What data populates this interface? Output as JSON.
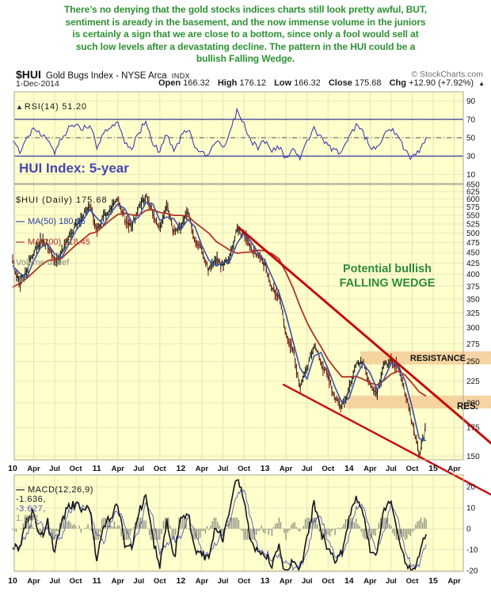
{
  "commentary": {
    "text": "There’s no denying that the gold stocks indices charts still look pretty awful, BUT,\nsentiment is aready in the basement, and the now immense volume in the juniors\nis certainly a sign that we are close to a bottom, since only a fool would sell at\nsuch low levels after a devastating decline. The pattern in the HUI could be a\nbullish Falling Wedge."
  },
  "header": {
    "symbol": "$HUI",
    "name": "Gold Bugs Index - NYSE Arca",
    "exchange": "INDX",
    "credit": "© StockCharts.com",
    "date": "1-Dec-2014",
    "quote": {
      "open_label": "Open",
      "open": "166.32",
      "high_label": "High",
      "high": "176.12",
      "low_label": "Low",
      "low": "166.32",
      "close_label": "Close",
      "close": "175.68",
      "chg_label": "Chg",
      "chg": "+12.90 (+7.92%)",
      "direction_icon": "▲"
    }
  },
  "annotations": {
    "hui_label": "HUI Index: 5-year",
    "wedge_label": "Potential bullish\nFALLING WEDGE",
    "resistance_label": "RESISTANCE",
    "res_label": "RES.",
    "rsi_icon": "▲"
  },
  "x_axis": {
    "labels": [
      "10",
      "Apr",
      "Jul",
      "Oct",
      "11",
      "Apr",
      "Jul",
      "Oct",
      "12",
      "Apr",
      "Jul",
      "Oct",
      "13",
      "Apr",
      "Jul",
      "Oct",
      "14",
      "Apr",
      "Jul",
      "Oct",
      "15",
      "Apr"
    ],
    "months_per_tick": 3,
    "start": "Jan 2010",
    "end_of_data": "Dec 2014"
  },
  "chart_data": [
    {
      "id": "rsi",
      "type": "line",
      "legend": "RSI(14) 51.20",
      "param": "RSI(14)",
      "current": 51.2,
      "yticks": [
        90,
        70,
        50,
        30,
        10
      ],
      "overbought": 70,
      "mid": 50,
      "oversold": 30,
      "ylim": [
        0,
        100
      ],
      "values": [
        45,
        35,
        50,
        60,
        55,
        50,
        35,
        50,
        60,
        65,
        60,
        65,
        40,
        55,
        60,
        65,
        45,
        40,
        55,
        70,
        45,
        35,
        55,
        35,
        50,
        60,
        40,
        35,
        30,
        45,
        40,
        55,
        80,
        65,
        45,
        40,
        45,
        35,
        40,
        27,
        35,
        28,
        45,
        60,
        50,
        40,
        35,
        33,
        50,
        62,
        55,
        40,
        38,
        55,
        60,
        50,
        38,
        27,
        35,
        51
      ]
    },
    {
      "id": "price",
      "type": "candlestick",
      "legend": "$HUI (Daily) 175.68",
      "ma50_legend": "MA(50) 180.96",
      "ma200_legend": "MA(200) 218.45",
      "volume_legend": "Volume undef",
      "last": 175.68,
      "ma50": 180.96,
      "ma200": 218.45,
      "scale": "log",
      "ylim": [
        147,
        650
      ],
      "yticks": [
        650,
        625,
        600,
        575,
        550,
        525,
        500,
        475,
        450,
        425,
        400,
        375,
        350,
        325,
        300,
        275,
        250,
        225,
        200,
        175,
        150
      ],
      "values": [
        430,
        375,
        410,
        450,
        475,
        468,
        425,
        450,
        490,
        520,
        550,
        585,
        500,
        545,
        570,
        600,
        540,
        520,
        570,
        610,
        560,
        510,
        580,
        500,
        520,
        555,
        480,
        455,
        408,
        430,
        420,
        440,
        505,
        495,
        460,
        440,
        420,
        370,
        355,
        290,
        268,
        215,
        240,
        275,
        250,
        230,
        205,
        195,
        215,
        245,
        250,
        220,
        210,
        245,
        250,
        240,
        210,
        180,
        150,
        176
      ],
      "resistance_bands": [
        {
          "label": "RESISTANCE",
          "top": 264,
          "bottom": 246,
          "x1": 455,
          "x2": 620
        },
        {
          "label": "RES.",
          "top": 208,
          "bottom": 194,
          "x1": 437,
          "x2": 620
        }
      ],
      "trendlines": [
        {
          "name": "wedge-upper",
          "x1": 302,
          "y1": 288,
          "x2": 620,
          "y2": 560,
          "width": 3
        },
        {
          "name": "wedge-lower",
          "x1": 358,
          "y1": 486,
          "x2": 620,
          "y2": 625,
          "width": 2.4
        }
      ],
      "colors": {
        "up": "#141414",
        "down": "#7d1a12",
        "ma50": "#3b52aa",
        "ma200": "#b03328",
        "trendline": "#c40000",
        "band": "#f5cd96"
      }
    },
    {
      "id": "macd",
      "type": "line",
      "legend_label": "MACD(12,26,9)",
      "macd_text": "-1.636,",
      "signal_text": "-3.627,",
      "hist_text": "1.991",
      "macd": -1.636,
      "signal": -3.627,
      "hist": 1.991,
      "yticks": [
        20,
        10,
        0,
        -10,
        -20
      ],
      "values": [
        -8,
        -10,
        5,
        8,
        -5,
        3,
        -12,
        5,
        10,
        12,
        8,
        10,
        -15,
        2,
        5,
        12,
        -8,
        -10,
        8,
        15,
        -5,
        -18,
        5,
        -15,
        5,
        8,
        -10,
        -12,
        -15,
        2,
        -5,
        8,
        25,
        15,
        -8,
        -10,
        -12,
        -18,
        -8,
        -23,
        -15,
        -20,
        -5,
        12,
        -2,
        -10,
        -15,
        -12,
        5,
        15,
        8,
        -10,
        -12,
        10,
        12,
        -5,
        -15,
        -22,
        -12,
        -2
      ]
    }
  ]
}
